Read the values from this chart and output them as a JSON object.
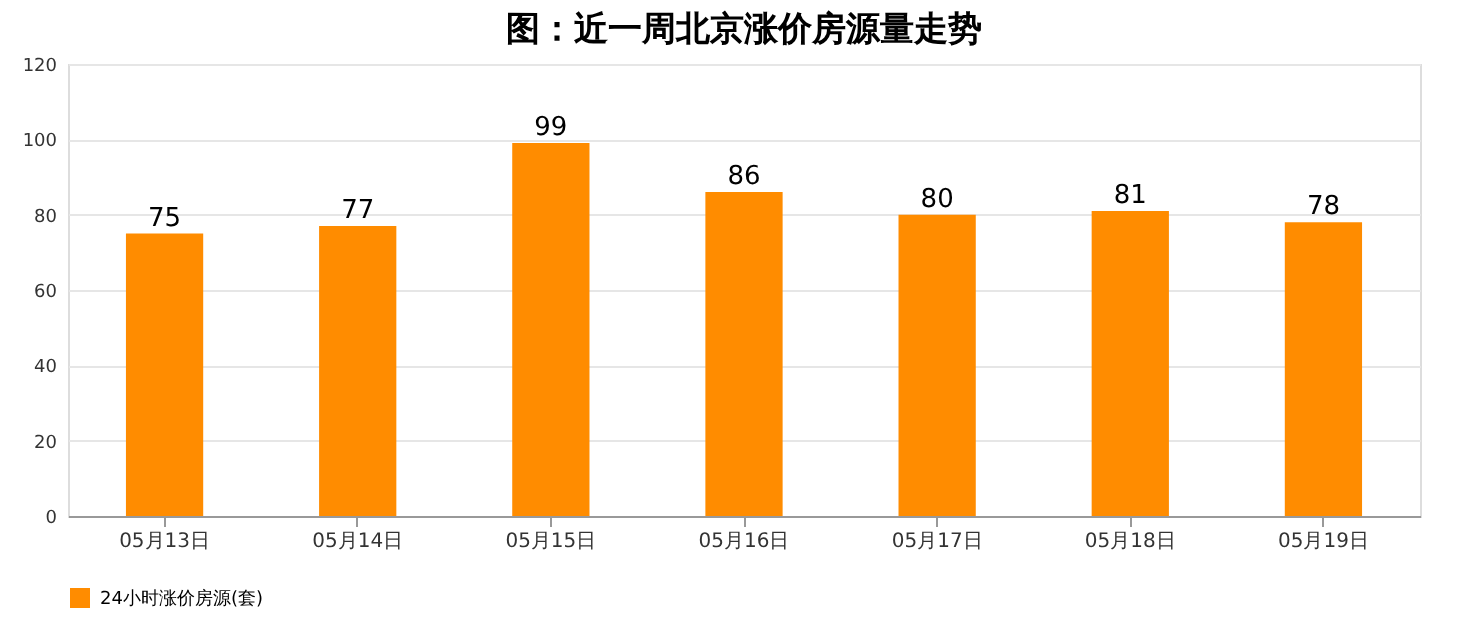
{
  "chart_data": {
    "type": "bar",
    "title": "图：近一周北京涨价房源量走势",
    "categories": [
      "05月13日",
      "05月14日",
      "05月15日",
      "05月16日",
      "05月17日",
      "05月18日",
      "05月19日"
    ],
    "series": [
      {
        "name": "24小时涨价房源(套)",
        "color": "#ff8c00",
        "values": [
          75,
          77,
          99,
          86,
          80,
          81,
          78
        ]
      }
    ],
    "ylim": [
      0,
      120
    ],
    "yticks": [
      0,
      20,
      40,
      60,
      80,
      100,
      120
    ],
    "grid": "y",
    "legend": "bottom",
    "data_labels": true
  }
}
